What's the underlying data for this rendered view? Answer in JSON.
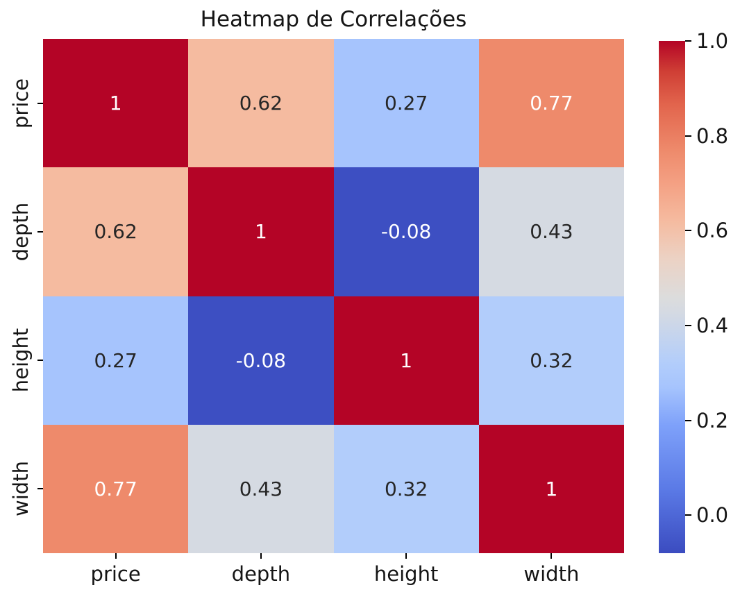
{
  "chart_data": {
    "type": "heatmap",
    "title": "Heatmap de Correlações",
    "categories": [
      "price",
      "depth",
      "height",
      "width"
    ],
    "matrix": [
      [
        1,
        0.62,
        0.27,
        0.77
      ],
      [
        0.62,
        1,
        -0.08,
        0.43
      ],
      [
        0.27,
        -0.08,
        1,
        0.32
      ],
      [
        0.77,
        0.43,
        0.32,
        1
      ]
    ],
    "cell_labels": [
      [
        "1",
        "0.62",
        "0.27",
        "0.77"
      ],
      [
        "0.62",
        "1",
        "-0.08",
        "0.43"
      ],
      [
        "0.27",
        "-0.08",
        "1",
        "0.32"
      ],
      [
        "0.77",
        "0.43",
        "0.32",
        "1"
      ]
    ],
    "cell_colors": [
      [
        "#b40426",
        "#f5bba0",
        "#a6c4fd",
        "#ee8a6b"
      ],
      [
        "#f5bba0",
        "#b40426",
        "#3d4fc2",
        "#d5dae2"
      ],
      [
        "#a6c4fd",
        "#3d4fc2",
        "#b40426",
        "#b2cdfb"
      ],
      [
        "#ee8a6b",
        "#d5dae2",
        "#b2cdfb",
        "#b40426"
      ]
    ],
    "cell_text_colors": [
      [
        "#ffffff",
        "#262626",
        "#262626",
        "#ffffff"
      ],
      [
        "#262626",
        "#ffffff",
        "#ffffff",
        "#262626"
      ],
      [
        "#262626",
        "#ffffff",
        "#ffffff",
        "#262626"
      ],
      [
        "#ffffff",
        "#262626",
        "#262626",
        "#ffffff"
      ]
    ],
    "colormap": "coolwarm",
    "vmin": -0.08,
    "vmax": 1.0,
    "grid": false,
    "legend_position": "right-colorbar",
    "colorbar": {
      "tick_labels": [
        "1.0",
        "0.8",
        "0.6",
        "0.4",
        "0.2",
        "0.0"
      ],
      "tick_values": [
        1.0,
        0.8,
        0.6,
        0.4,
        0.2,
        0.0
      ],
      "gradient_stops": [
        {
          "pos": 0.0,
          "color": "#3b4cc0"
        },
        {
          "pos": 0.125,
          "color": "#5b7ae6"
        },
        {
          "pos": 0.25,
          "color": "#7ea1fa"
        },
        {
          "pos": 0.324,
          "color": "#a6c4fd"
        },
        {
          "pos": 0.37,
          "color": "#b2cdfb"
        },
        {
          "pos": 0.472,
          "color": "#d5dae2"
        },
        {
          "pos": 0.5,
          "color": "#dcdcdc"
        },
        {
          "pos": 0.575,
          "color": "#ecd2c4"
        },
        {
          "pos": 0.648,
          "color": "#f5bba0"
        },
        {
          "pos": 0.72,
          "color": "#f4a184"
        },
        {
          "pos": 0.787,
          "color": "#ee8a6b"
        },
        {
          "pos": 0.875,
          "color": "#e2654d"
        },
        {
          "pos": 0.94,
          "color": "#cf3f35"
        },
        {
          "pos": 1.0,
          "color": "#b40426"
        }
      ]
    },
    "colors": {
      "background": "#ffffff",
      "title_text": "#151515",
      "tick_text": "#151515",
      "annot_dark": "#262626",
      "annot_light": "#ffffff",
      "max_red": "#b40426",
      "min_blue": "#3b4cc0"
    }
  }
}
